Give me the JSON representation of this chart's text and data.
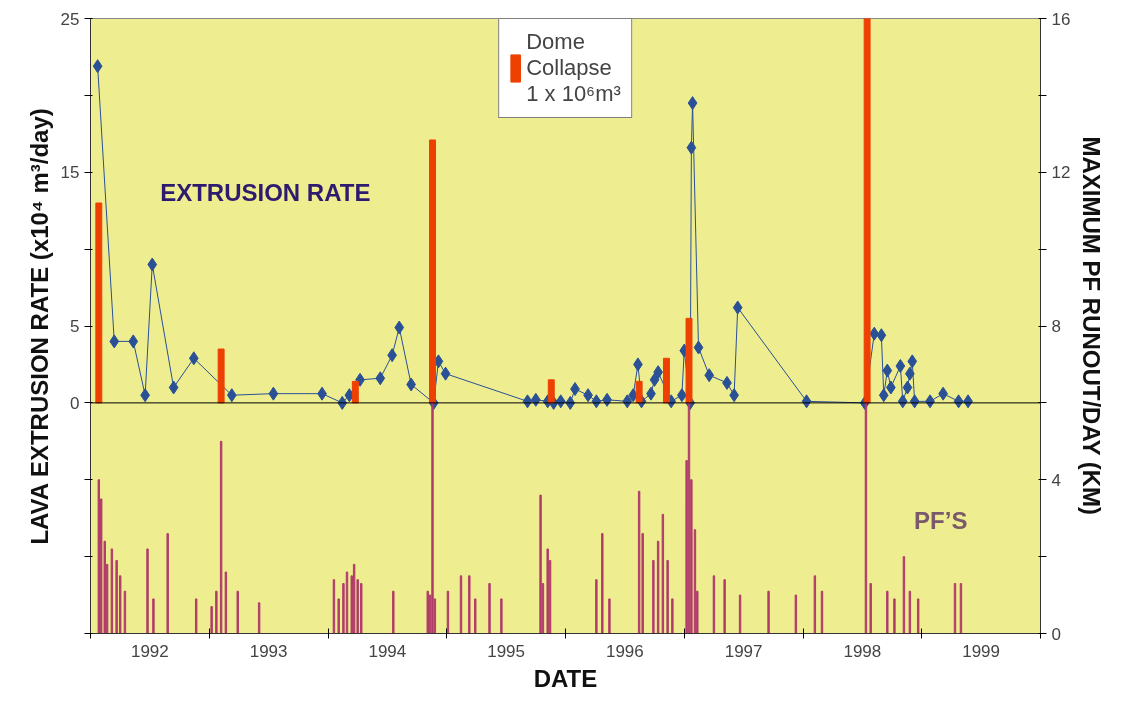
{
  "chart_data": {
    "type": "line",
    "xlabel": "DATE",
    "ylabel": "LAVA EXTRUSION RATE (x10⁴ m³/day)",
    "y2label": "MAXIMUM PF RUNOUT/DAY (KM)",
    "xlim": [
      1992,
      2000
    ],
    "ylim": [
      -15,
      25
    ],
    "y2lim": [
      0,
      16
    ],
    "xticks": [
      {
        "value": 1992,
        "label": null
      },
      {
        "value": 1992.5,
        "label": "1992"
      },
      {
        "value": 1993,
        "label": null
      },
      {
        "value": 1993.5,
        "label": "1993"
      },
      {
        "value": 1994,
        "label": null
      },
      {
        "value": 1994.5,
        "label": "1994"
      },
      {
        "value": 1995,
        "label": null
      },
      {
        "value": 1995.5,
        "label": "1995"
      },
      {
        "value": 1996,
        "label": null
      },
      {
        "value": 1996.5,
        "label": "1996"
      },
      {
        "value": 1997,
        "label": null
      },
      {
        "value": 1997.5,
        "label": "1997"
      },
      {
        "value": 1998,
        "label": null
      },
      {
        "value": 1998.5,
        "label": "1998"
      },
      {
        "value": 1999,
        "label": null
      },
      {
        "value": 1999.5,
        "label": "1999"
      },
      {
        "value": 2000,
        "label": null
      }
    ],
    "yticks": [
      {
        "value": -15,
        "label": null
      },
      {
        "value": -10,
        "label": null
      },
      {
        "value": -5,
        "label": null
      },
      0,
      5,
      {
        "value": 10,
        "label": null
      },
      15,
      {
        "value": 20,
        "label": null
      },
      25
    ],
    "y2ticks": [
      0,
      {
        "value": 2,
        "label": null
      },
      4,
      {
        "value": 6,
        "label": null
      },
      8,
      {
        "value": 10,
        "label": null
      },
      12,
      {
        "value": 14,
        "label": null
      },
      16
    ],
    "grid": false,
    "legend": "top",
    "marker": "diamond",
    "line_style": "solid",
    "ref_lines": [
      {
        "axis": "y",
        "value": 0,
        "color": "#000000"
      }
    ],
    "series": [
      {
        "name": "EXTRUSION RATE",
        "color": "#2a5096",
        "x": [
          1992.06,
          1992.2,
          1992.36,
          1992.46,
          1992.52,
          1992.7,
          1992.87,
          1993.19,
          1993.54,
          1993.95,
          1994.12,
          1994.18,
          1994.27,
          1994.44,
          1994.54,
          1994.6,
          1994.7,
          1994.89,
          1994.93,
          1994.99,
          1995.68,
          1995.75,
          1995.85,
          1995.9,
          1995.96,
          1996.04,
          1996.08,
          1996.19,
          1996.26,
          1996.35,
          1996.52,
          1996.57,
          1996.61,
          1996.64,
          1996.72,
          1996.75,
          1996.78,
          1996.89,
          1996.98,
          1997.0,
          1997.05,
          1997.06,
          1997.07,
          1997.12,
          1997.21,
          1997.36,
          1997.42,
          1997.45,
          1998.03,
          1998.52,
          1998.6,
          1998.66,
          1998.68,
          1998.71,
          1998.74,
          1998.82,
          1998.84,
          1998.88,
          1998.9,
          1998.92,
          1998.94,
          1999.07,
          1999.18,
          1999.31,
          1999.39
        ],
        "values": [
          21.9,
          4.0,
          4.0,
          0.5,
          9.0,
          1.0,
          2.9,
          0.5,
          0.6,
          0.6,
          0,
          0.5,
          1.5,
          1.6,
          3.1,
          4.9,
          1.2,
          0,
          2.7,
          1.9,
          0.1,
          0.2,
          0.1,
          0,
          0.1,
          0,
          0.9,
          0.5,
          0.1,
          0.2,
          0.1,
          0.5,
          2.5,
          0.1,
          0.6,
          1.5,
          2.0,
          0.1,
          0.5,
          3.4,
          0,
          16.6,
          19.5,
          3.6,
          1.8,
          1.3,
          0.5,
          6.2,
          0.1,
          0,
          4.5,
          4.4,
          0.5,
          2.1,
          1.0,
          2.4,
          0.1,
          1.0,
          1.9,
          2.7,
          0.1,
          0.1,
          0.6,
          0.1,
          0.1
        ]
      },
      {
        "name": "Dome\nCollapse\n1 x 10⁶m³",
        "type": "bar",
        "color": "#ee4000",
        "x": [
          1992.07,
          1993.1,
          1994.23,
          1994.88,
          1995.88,
          1996.62,
          1996.85,
          1997.04,
          1998.54
        ],
        "values": [
          13.0,
          3.5,
          1.4,
          17.1,
          1.5,
          1.4,
          2.9,
          5.5,
          25
        ]
      },
      {
        "name": "PF’S",
        "type": "bar",
        "axis": "y2",
        "color": "#b03c6a",
        "x": [
          1992.07,
          1992.09,
          1992.12,
          1992.14,
          1992.18,
          1992.22,
          1992.25,
          1992.29,
          1992.48,
          1992.53,
          1992.65,
          1992.89,
          1993.02,
          1993.06,
          1993.1,
          1993.14,
          1993.24,
          1993.42,
          1994.05,
          1994.09,
          1994.13,
          1994.16,
          1994.2,
          1994.22,
          1994.25,
          1994.28,
          1994.55,
          1994.84,
          1994.86,
          1994.88,
          1994.9,
          1995.01,
          1995.12,
          1995.19,
          1995.24,
          1995.36,
          1995.46,
          1995.79,
          1995.81,
          1995.85,
          1995.87,
          1996.26,
          1996.31,
          1996.37,
          1996.62,
          1996.65,
          1996.74,
          1996.78,
          1996.82,
          1996.86,
          1996.9,
          1997.02,
          1997.04,
          1997.06,
          1997.09,
          1997.11,
          1997.25,
          1997.34,
          1997.47,
          1997.71,
          1997.94,
          1998.1,
          1998.16,
          1998.53,
          1998.57,
          1998.71,
          1998.77,
          1998.85,
          1998.9,
          1998.97,
          1999.28,
          1999.33
        ],
        "values": [
          4.0,
          3.5,
          2.4,
          1.8,
          2.2,
          1.9,
          1.5,
          1.1,
          2.2,
          0.9,
          2.6,
          0.9,
          0.7,
          1.1,
          5.0,
          1.6,
          1.1,
          0.8,
          1.4,
          0.9,
          1.3,
          1.6,
          1.5,
          1.8,
          1.4,
          1.3,
          1.1,
          1.1,
          1.0,
          6.0,
          0.9,
          1.1,
          1.5,
          1.5,
          0.9,
          1.3,
          0.9,
          3.6,
          1.3,
          2.2,
          1.9,
          1.4,
          2.6,
          0.9,
          3.7,
          2.6,
          1.9,
          2.4,
          3.1,
          1.9,
          0.9,
          4.5,
          6.0,
          4.0,
          2.7,
          1.1,
          1.5,
          1.4,
          1.0,
          1.1,
          1.0,
          1.5,
          1.1,
          6.0,
          1.3,
          1.1,
          0.9,
          2.0,
          1.1,
          0.9,
          1.3,
          1.3
        ]
      }
    ]
  }
}
